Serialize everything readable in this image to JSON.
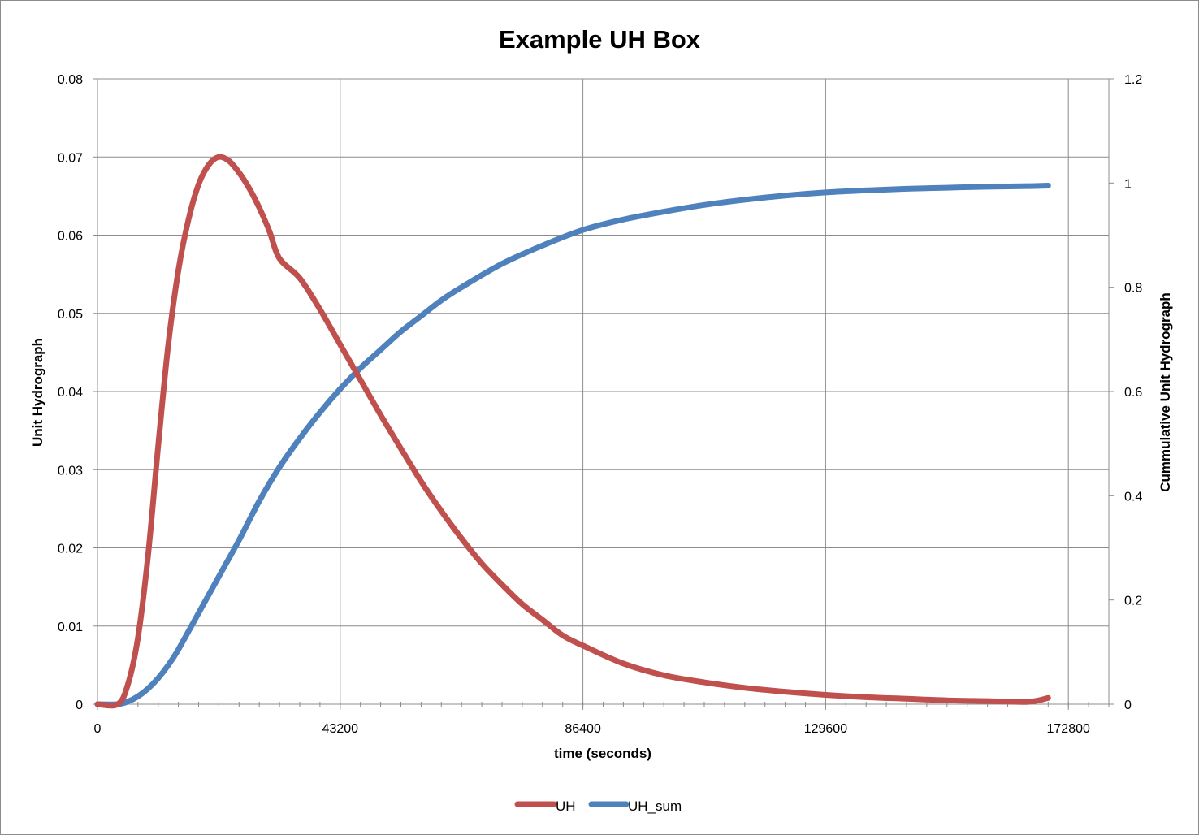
{
  "chart_data": {
    "type": "line",
    "title": "Example UH Box",
    "xlabel": "time (seconds)",
    "ylabel_left": "Unit Hydrograph",
    "ylabel_right": "Cummulative Unit Hydrograph",
    "xlim": [
      0,
      180000
    ],
    "ylim_left": [
      0,
      0.08
    ],
    "ylim_right": [
      0,
      1.2
    ],
    "x_ticks": [
      0,
      43200,
      86400,
      129600,
      172800
    ],
    "x_tick_labels": [
      "0",
      "43200",
      "86400",
      "129600",
      "172800"
    ],
    "x_minor_step": 3600,
    "y_left_ticks": [
      0,
      0.01,
      0.02,
      0.03,
      0.04,
      0.05,
      0.06,
      0.07,
      0.08
    ],
    "y_left_tick_labels": [
      "0",
      "0.01",
      "0.02",
      "0.03",
      "0.04",
      "0.05",
      "0.06",
      "0.07",
      "0.08"
    ],
    "y_right_ticks": [
      0,
      0.2,
      0.4,
      0.6,
      0.8,
      1,
      1.2
    ],
    "y_right_tick_labels": [
      "0",
      "0.2",
      "0.4",
      "0.6",
      "0.8",
      "1",
      "1.2"
    ],
    "grid": true,
    "legend_position": "bottom-center",
    "series": [
      {
        "name": "UH",
        "axis": "left",
        "color": "#c0504d",
        "x": [
          0,
          3600,
          5400,
          7200,
          9000,
          10800,
          12600,
          14400,
          16200,
          18000,
          19800,
          21600,
          23400,
          25200,
          27000,
          28800,
          30600,
          32400,
          36000,
          39600,
          43200,
          46800,
          50400,
          54000,
          57600,
          61200,
          64800,
          68400,
          72000,
          75600,
          79200,
          82800,
          86400,
          93600,
          100800,
          108000,
          115200,
          122400,
          129600,
          136800,
          144000,
          151200,
          158400,
          165600,
          169200
        ],
        "values": [
          0,
          0,
          0.0025,
          0.0085,
          0.019,
          0.033,
          0.046,
          0.0555,
          0.062,
          0.0665,
          0.069,
          0.07,
          0.0695,
          0.068,
          0.066,
          0.0635,
          0.0605,
          0.057,
          0.0545,
          0.0505,
          0.046,
          0.0415,
          0.037,
          0.0327,
          0.0285,
          0.0247,
          0.0212,
          0.018,
          0.0153,
          0.0128,
          0.0108,
          0.0088,
          0.0075,
          0.0052,
          0.0037,
          0.0028,
          0.0021,
          0.0016,
          0.0012,
          0.0009,
          0.0007,
          0.0005,
          0.0004,
          0.0003,
          0.0008
        ]
      },
      {
        "name": "UH_sum",
        "axis": "right",
        "color": "#4f81bd",
        "x": [
          0,
          3600,
          5400,
          7200,
          9000,
          10800,
          12600,
          14400,
          18000,
          21600,
          25200,
          28800,
          32400,
          36000,
          39600,
          43200,
          46800,
          50400,
          54000,
          57600,
          61200,
          64800,
          72000,
          79200,
          86400,
          93600,
          100800,
          108000,
          115200,
          122400,
          129600,
          136800,
          144000,
          151200,
          158400,
          165600,
          169200
        ],
        "values": [
          0,
          0,
          0.005,
          0.015,
          0.03,
          0.05,
          0.075,
          0.105,
          0.175,
          0.245,
          0.315,
          0.39,
          0.455,
          0.51,
          0.56,
          0.605,
          0.645,
          0.68,
          0.715,
          0.745,
          0.775,
          0.8,
          0.845,
          0.88,
          0.91,
          0.93,
          0.945,
          0.958,
          0.968,
          0.976,
          0.982,
          0.986,
          0.989,
          0.991,
          0.993,
          0.994,
          0.995
        ]
      }
    ]
  }
}
